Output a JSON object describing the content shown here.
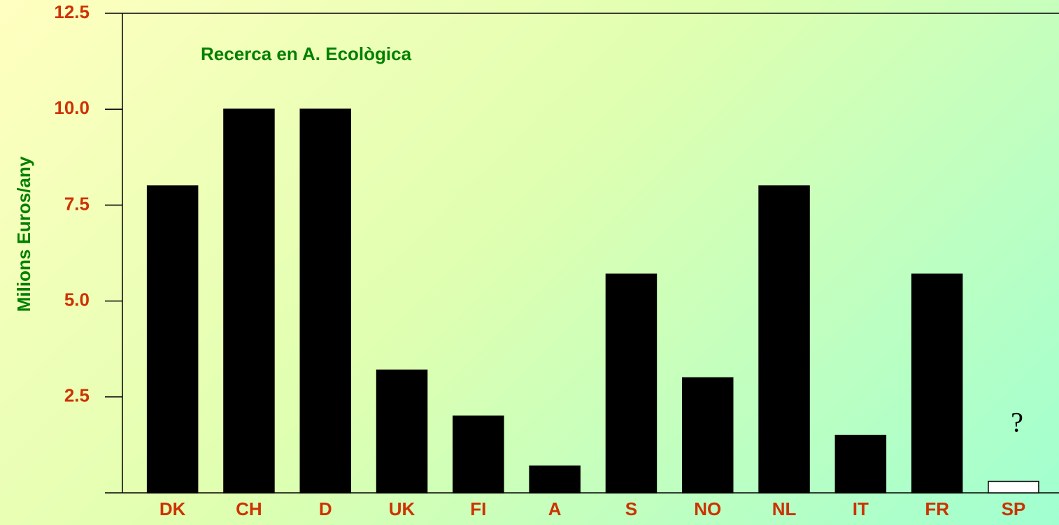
{
  "chart_data": {
    "type": "bar",
    "title": "Recerca en A. Ecològica",
    "y_label": "Milions Euros/any",
    "categories": [
      "DK",
      "CH",
      "D",
      "UK",
      "FI",
      "A",
      "S",
      "NO",
      "NL",
      "IT",
      "FR",
      "SP"
    ],
    "values": [
      8.0,
      10.0,
      10.0,
      3.2,
      2.0,
      0.7,
      5.7,
      3.0,
      8.0,
      1.5,
      5.7,
      0.3
    ],
    "colors": [
      "#000000",
      "#000000",
      "#000000",
      "#000000",
      "#000000",
      "#000000",
      "#000000",
      "#000000",
      "#000000",
      "#000000",
      "#000000",
      "#ffffff"
    ],
    "annotation": "?",
    "ylim": [
      0,
      12.5
    ],
    "yticks": [
      {
        "value": 2.5,
        "label": "2.5"
      },
      {
        "value": 5,
        "label": "5.0"
      },
      7.5,
      {
        "value": 10,
        "label": "10.0"
      },
      12.5
    ],
    "grid": false
  }
}
